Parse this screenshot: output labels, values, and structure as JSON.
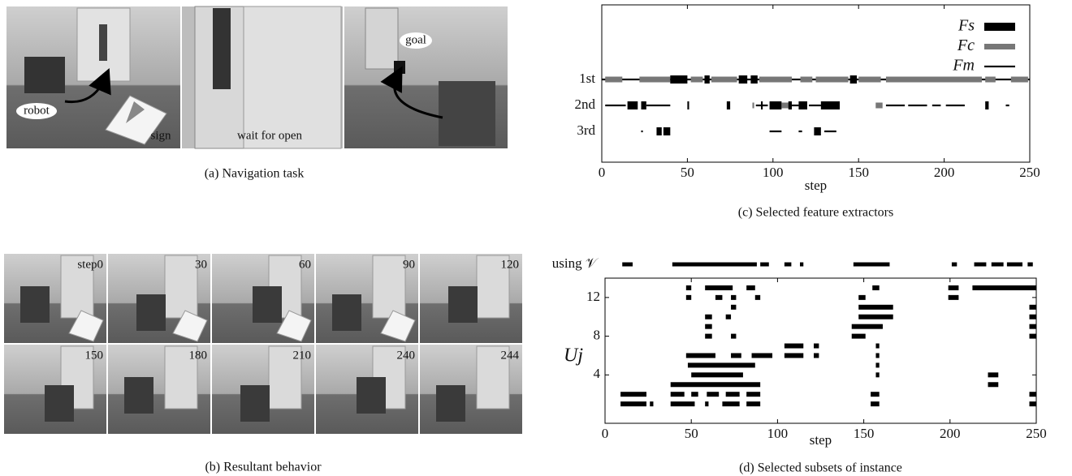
{
  "panels": {
    "a": {
      "caption": "(a) Navigation task",
      "labels": [
        "robot",
        "sign",
        "wait for open",
        "goal"
      ]
    },
    "b": {
      "caption": "(b) Resultant behavior",
      "frames": [
        "step0",
        "30",
        "60",
        "90",
        "120",
        "150",
        "180",
        "210",
        "240",
        "244"
      ]
    }
  },
  "chart_data": [
    {
      "type": "gantt",
      "caption": "(c) Selected feature extractors",
      "xlabel": "step",
      "xlim": [
        0,
        250
      ],
      "xticks": [
        0,
        50,
        100,
        150,
        200,
        250
      ],
      "categories": [
        "1st",
        "2nd",
        "3rd"
      ],
      "series": [
        {
          "name": "Fs",
          "color": "#000000",
          "values": [
            [
              [
                40,
                50
              ],
              [
                60,
                63
              ],
              [
                80,
                85
              ],
              [
                87,
                91
              ],
              [
                145,
                149
              ]
            ],
            [
              [
                15,
                21
              ],
              [
                23,
                26
              ],
              [
                50,
                51
              ],
              [
                73,
                75
              ],
              [
                93,
                94
              ],
              [
                98,
                105
              ],
              [
                109,
                111
              ],
              [
                115,
                120
              ],
              [
                128,
                139
              ],
              [
                224,
                226
              ]
            ],
            [
              [
                32,
                35
              ],
              [
                36,
                40
              ],
              [
                124,
                128
              ]
            ]
          ]
        },
        {
          "name": "Fc",
          "color": "#777777",
          "values": [
            [
              [
                2,
                12
              ],
              [
                22,
                40
              ],
              [
                52,
                59
              ],
              [
                64,
                79
              ],
              [
                92,
                111
              ],
              [
                116,
                123
              ],
              [
                125,
                144
              ],
              [
                150,
                163
              ],
              [
                166,
                222
              ],
              [
                224,
                230
              ],
              [
                239,
                249
              ]
            ],
            [
              [
                88,
                89
              ],
              [
                105,
                110
              ],
              [
                160,
                164
              ]
            ],
            []
          ]
        },
        {
          "name": "Fm",
          "color": "#000000",
          "values": [
            [
              [
                0,
                250
              ]
            ],
            [
              [
                2,
                14
              ],
              [
                26,
                40
              ],
              [
                90,
                97
              ],
              [
                111,
                115
              ],
              [
                121,
                128
              ],
              [
                166,
                177
              ],
              [
                179,
                190
              ],
              [
                193,
                198
              ],
              [
                201,
                212
              ],
              [
                236,
                238
              ]
            ],
            [
              [
                23,
                24
              ],
              [
                98,
                105
              ],
              [
                115,
                117
              ],
              [
                130,
                137
              ]
            ]
          ]
        }
      ]
    },
    {
      "type": "gantt-rows",
      "caption": "(d) Selected subsets of instance",
      "xlabel": "step",
      "ylabel": "Uj",
      "xlim": [
        0,
        250
      ],
      "xticks": [
        0,
        50,
        100,
        150,
        200,
        250
      ],
      "ylim": [
        -1,
        14
      ],
      "yticks": [
        4,
        8,
        12
      ],
      "using": {
        "label": "using 𝒱",
        "intervals": [
          [
            10,
            16
          ],
          [
            39,
            88
          ],
          [
            90,
            95
          ],
          [
            104,
            108
          ],
          [
            113,
            115
          ],
          [
            144,
            165
          ],
          [
            201,
            204
          ],
          [
            214,
            221
          ],
          [
            224,
            231
          ],
          [
            233,
            242
          ],
          [
            245,
            248
          ]
        ]
      },
      "rows": {
        "y": [
          1,
          2,
          3,
          4,
          5,
          6,
          7,
          8,
          9,
          10,
          11,
          12,
          13
        ],
        "intervals": [
          [
            [
              9,
              24
            ],
            [
              26,
              28
            ],
            [
              38,
              52
            ],
            [
              58,
              60
            ],
            [
              68,
              78
            ],
            [
              82,
              90
            ],
            [
              154,
              159
            ],
            [
              246,
              250
            ]
          ],
          [
            [
              9,
              24
            ],
            [
              38,
              46
            ],
            [
              50,
              54
            ],
            [
              59,
              66
            ],
            [
              70,
              78
            ],
            [
              82,
              90
            ],
            [
              154,
              159
            ],
            [
              246,
              250
            ]
          ],
          [
            [
              38,
              90
            ],
            [
              222,
              228
            ]
          ],
          [
            [
              50,
              80
            ],
            [
              157,
              159
            ],
            [
              222,
              228
            ]
          ],
          [
            [
              48,
              87
            ],
            [
              157,
              159
            ]
          ],
          [
            [
              47,
              64
            ],
            [
              73,
              79
            ],
            [
              85,
              97
            ],
            [
              104,
              115
            ],
            [
              121,
              124
            ],
            [
              157,
              159
            ]
          ],
          [
            [
              104,
              115
            ],
            [
              121,
              124
            ],
            [
              157,
              159
            ]
          ],
          [
            [
              58,
              62
            ],
            [
              73,
              76
            ],
            [
              143,
              151
            ],
            [
              246,
              250
            ]
          ],
          [
            [
              58,
              62
            ],
            [
              143,
              161
            ],
            [
              246,
              250
            ]
          ],
          [
            [
              58,
              62
            ],
            [
              70,
              73
            ],
            [
              147,
              167
            ],
            [
              246,
              250
            ]
          ],
          [
            [
              73,
              76
            ],
            [
              147,
              167
            ],
            [
              246,
              250
            ]
          ],
          [
            [
              47,
              50
            ],
            [
              64,
              68
            ],
            [
              73,
              76
            ],
            [
              87,
              90
            ],
            [
              147,
              151
            ],
            [
              199,
              205
            ]
          ],
          [
            [
              47,
              50
            ],
            [
              58,
              74
            ],
            [
              82,
              87
            ],
            [
              155,
              159
            ],
            [
              199,
              205
            ],
            [
              213,
              250
            ]
          ]
        ]
      }
    }
  ]
}
